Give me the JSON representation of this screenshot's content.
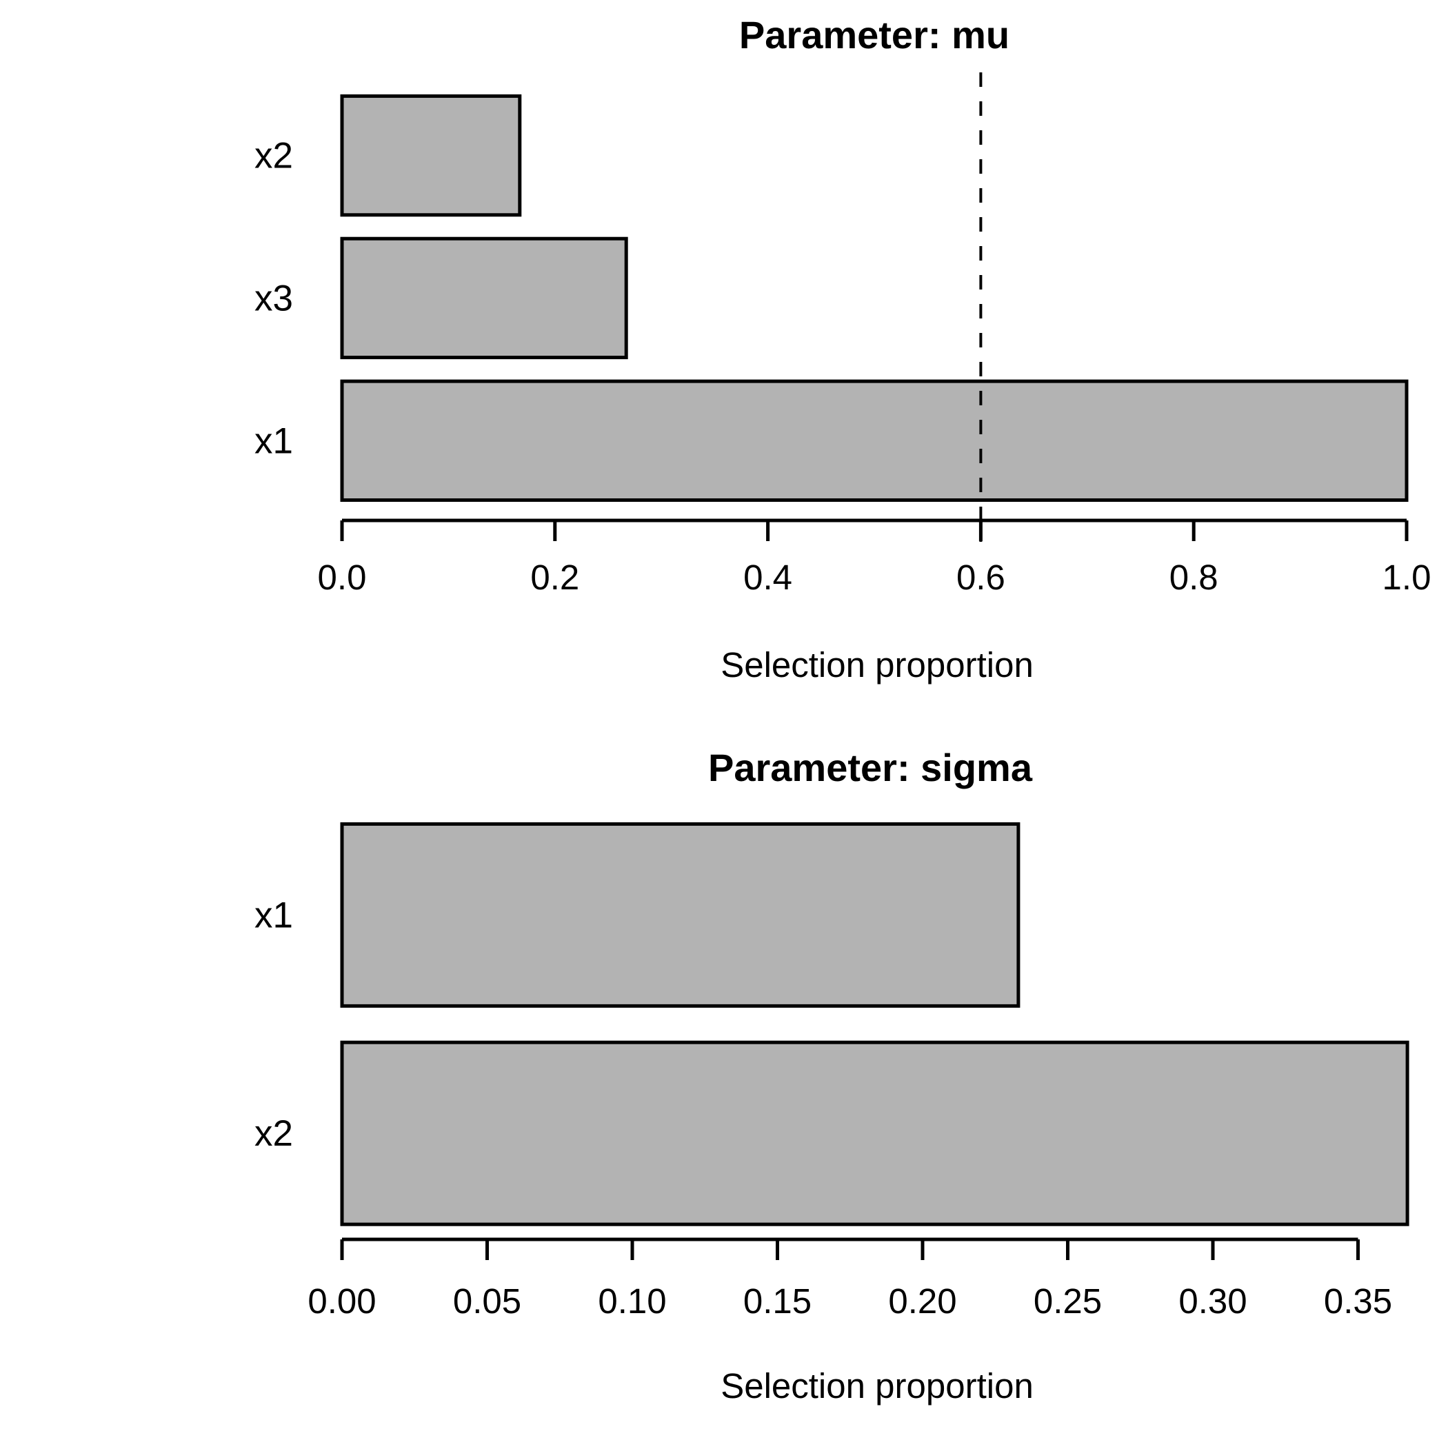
{
  "background_color": "#ffffff",
  "text_color": "#000000",
  "bar_fill_color": "#b3b3b3",
  "bar_border_color": "#000000",
  "chart_data": [
    {
      "type": "bar",
      "orientation": "horizontal",
      "title": "Parameter: mu",
      "xlabel": "Selection proportion",
      "categories_top_to_bottom": [
        "x2",
        "x3",
        "x1"
      ],
      "series": [
        {
          "name": "Selection proportion (mu)",
          "bars_top_to_bottom": [
            {
              "label": "x2",
              "value": 0.167
            },
            {
              "label": "x3",
              "value": 0.267
            },
            {
              "label": "x1",
              "value": 1.0
            }
          ]
        }
      ],
      "xlim": [
        0,
        1.0
      ],
      "xticks": [
        0.0,
        0.2,
        0.4,
        0.6,
        0.8,
        1.0
      ],
      "xtick_labels": [
        "0.0",
        "0.2",
        "0.4",
        "0.6",
        "0.8",
        "1.0"
      ],
      "threshold_line": {
        "x": 0.6,
        "style": "dashed",
        "color": "#000000"
      },
      "grid": false,
      "legend": null
    },
    {
      "type": "bar",
      "orientation": "horizontal",
      "title": "Parameter: sigma",
      "xlabel": "Selection proportion",
      "categories_top_to_bottom": [
        "x1",
        "x2"
      ],
      "series": [
        {
          "name": "Selection proportion (sigma)",
          "bars_top_to_bottom": [
            {
              "label": "x1",
              "value": 0.233
            },
            {
              "label": "x2",
              "value": 0.367
            }
          ]
        }
      ],
      "xlim": [
        0,
        0.367
      ],
      "xticks": [
        0.0,
        0.05,
        0.1,
        0.15,
        0.2,
        0.25,
        0.3,
        0.35
      ],
      "xtick_labels": [
        "0.00",
        "0.05",
        "0.10",
        "0.15",
        "0.20",
        "0.25",
        "0.30",
        "0.35"
      ],
      "threshold_line": null,
      "grid": false,
      "legend": null
    }
  ]
}
